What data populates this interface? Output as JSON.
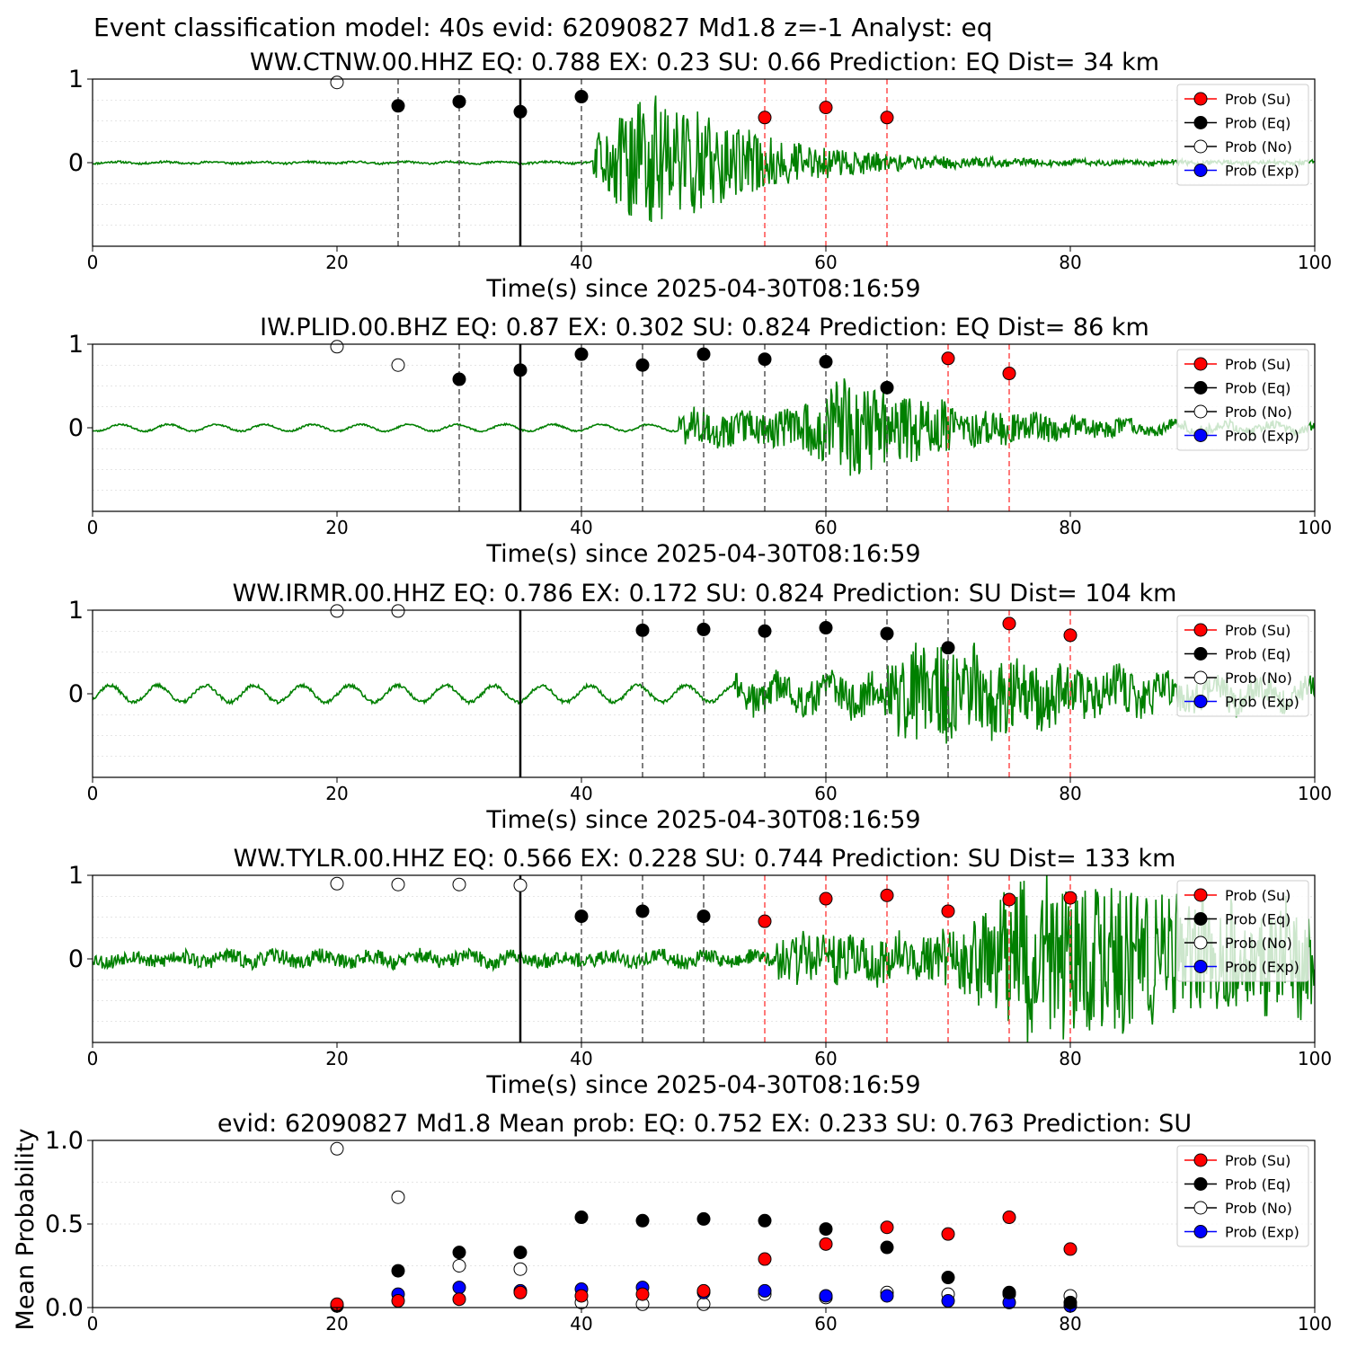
{
  "suptitle": "Event classification model: 40s evid: 62090827 Md1.8 z=-1 Analyst: eq",
  "colors": {
    "su": "#ff0000",
    "eq": "#000000",
    "no": "#ffffff",
    "exp": "#0000ff",
    "trace": "#008000",
    "su_line": "#ff4d4d",
    "eq_line": "#555555"
  },
  "legend_labels": [
    "Prob (Su)",
    "Prob (Eq)",
    "Prob (No)",
    "Prob (Exp)"
  ],
  "chart_data": [
    {
      "type": "scatter",
      "title": "WW.CTNW.00.HHZ   EQ: 0.788  EX: 0.23  SU: 0.66   Prediction: EQ    Dist= 34 km",
      "xlabel": "Time(s) since 2025-04-30T08:16:59",
      "ylabel": "",
      "xlim": [
        0,
        100
      ],
      "ylim": [
        -1,
        1
      ],
      "xticks": [
        "0",
        "20",
        "40",
        "60",
        "80",
        "100"
      ],
      "yticks": [
        "0",
        "1"
      ],
      "legend": "top-right",
      "grid": "horizontal",
      "trace": {
        "onset": 41,
        "noise": 0.012,
        "peak": 0.95,
        "peak_at": 46,
        "decay": 8,
        "coda": 0.02,
        "wavy": 0.01,
        "seed": 11
      },
      "solid_line_x": 35,
      "eq_lines_x": [
        25,
        30,
        40
      ],
      "su_lines_x": [
        55,
        60,
        65
      ],
      "series": [
        {
          "name": "Prob (Su)",
          "x": [
            55,
            60,
            65
          ],
          "y": [
            0.54,
            0.66,
            0.54
          ]
        },
        {
          "name": "Prob (Eq)",
          "x": [
            25,
            30,
            35,
            40
          ],
          "y": [
            0.68,
            0.73,
            0.61,
            0.79
          ]
        },
        {
          "name": "Prob (No)",
          "x": [
            20
          ],
          "y": [
            0.96
          ]
        },
        {
          "name": "Prob (Exp)",
          "x": [],
          "y": []
        }
      ]
    },
    {
      "type": "scatter",
      "title": "IW.PLID.00.BHZ   EQ: 0.87  EX: 0.302  SU: 0.824   Prediction: EQ    Dist= 86 km",
      "xlabel": "Time(s) since 2025-04-30T08:16:59",
      "ylabel": "",
      "xlim": [
        0,
        100
      ],
      "ylim": [
        -1,
        1
      ],
      "xticks": [
        "0",
        "20",
        "40",
        "60",
        "80",
        "100"
      ],
      "yticks": [
        "0",
        "1"
      ],
      "legend": "top-right",
      "grid": "horizontal",
      "trace": {
        "onset": 48,
        "noise": 0.01,
        "peak": 0.6,
        "peak_at": 62,
        "decay": 10,
        "coda": 0.03,
        "wavy": 0.04,
        "seed": 23
      },
      "solid_line_x": 35,
      "eq_lines_x": [
        30,
        40,
        45,
        50,
        55,
        60,
        65
      ],
      "su_lines_x": [
        70,
        75
      ],
      "series": [
        {
          "name": "Prob (Su)",
          "x": [
            70,
            75
          ],
          "y": [
            0.83,
            0.65
          ]
        },
        {
          "name": "Prob (Eq)",
          "x": [
            30,
            35,
            40,
            45,
            50,
            55,
            60,
            65
          ],
          "y": [
            0.58,
            0.69,
            0.88,
            0.75,
            0.88,
            0.82,
            0.79,
            0.48
          ]
        },
        {
          "name": "Prob (No)",
          "x": [
            20,
            25
          ],
          "y": [
            0.97,
            0.75
          ]
        },
        {
          "name": "Prob (Exp)",
          "x": [],
          "y": []
        }
      ]
    },
    {
      "type": "scatter",
      "title": "WW.IRMR.00.HHZ   EQ: 0.786  EX: 0.172  SU: 0.824   Prediction: SU    Dist= 104 km",
      "xlabel": "Time(s) since 2025-04-30T08:16:59",
      "ylabel": "",
      "xlim": [
        0,
        100
      ],
      "ylim": [
        -1,
        1
      ],
      "xticks": [
        "0",
        "20",
        "40",
        "60",
        "80",
        "100"
      ],
      "yticks": [
        "0",
        "1"
      ],
      "legend": "top-right",
      "grid": "horizontal",
      "trace": {
        "onset": 52.5,
        "noise": 0.02,
        "peak": 0.6,
        "peak_at": 68,
        "decay": 14,
        "coda": 0.08,
        "wavy": 0.1,
        "seed": 37
      },
      "solid_line_x": 35,
      "eq_lines_x": [
        45,
        50,
        55,
        60,
        65,
        70
      ],
      "su_lines_x": [
        75,
        80
      ],
      "series": [
        {
          "name": "Prob (Su)",
          "x": [
            75,
            80
          ],
          "y": [
            0.84,
            0.7
          ]
        },
        {
          "name": "Prob (Eq)",
          "x": [
            45,
            50,
            55,
            60,
            65,
            70
          ],
          "y": [
            0.76,
            0.77,
            0.75,
            0.79,
            0.72,
            0.55
          ]
        },
        {
          "name": "Prob (No)",
          "x": [
            20,
            25
          ],
          "y": [
            0.99,
            0.99
          ]
        },
        {
          "name": "Prob (Exp)",
          "x": [],
          "y": []
        }
      ]
    },
    {
      "type": "scatter",
      "title": "WW.TYLR.00.HHZ   EQ: 0.566  EX: 0.228  SU: 0.744   Prediction: SU    Dist= 133 km",
      "xlabel": "Time(s) since 2025-04-30T08:16:59",
      "ylabel": "",
      "xlim": [
        0,
        100
      ],
      "ylim": [
        -1,
        1
      ],
      "xticks": [
        "0",
        "20",
        "40",
        "60",
        "80",
        "100"
      ],
      "yticks": [
        "0",
        "1"
      ],
      "legend": "top-right",
      "grid": "horizontal",
      "trace": {
        "onset": 56,
        "noise": 0.09,
        "peak": 0.75,
        "peak_at": 75,
        "decay": 30,
        "coda": 0.3,
        "wavy": 0.04,
        "seed": 53
      },
      "solid_line_x": 35,
      "eq_lines_x": [
        40,
        45,
        50
      ],
      "su_lines_x": [
        55,
        60,
        65,
        70,
        75,
        80
      ],
      "series": [
        {
          "name": "Prob (Su)",
          "x": [
            55,
            60,
            65,
            70,
            75,
            80
          ],
          "y": [
            0.45,
            0.72,
            0.76,
            0.57,
            0.71,
            0.73
          ]
        },
        {
          "name": "Prob (Eq)",
          "x": [
            40,
            45,
            50
          ],
          "y": [
            0.51,
            0.57,
            0.51
          ]
        },
        {
          "name": "Prob (No)",
          "x": [
            20,
            25,
            30,
            35
          ],
          "y": [
            0.9,
            0.89,
            0.89,
            0.88
          ]
        },
        {
          "name": "Prob (Exp)",
          "x": [],
          "y": []
        }
      ]
    },
    {
      "type": "scatter",
      "title": "evid: 62090827  Md1.8   Mean prob:   EQ: 0.752  EX: 0.233  SU: 0.763   Prediction: SU",
      "xlabel": "",
      "ylabel": "Mean Probability",
      "xlim": [
        0,
        100
      ],
      "ylim": [
        0,
        1
      ],
      "xticks": [
        "0",
        "20",
        "40",
        "60",
        "80",
        "100"
      ],
      "yticks": [
        "0.0",
        "0.5",
        "1.0"
      ],
      "legend": "top-right",
      "grid": "horizontal",
      "series": [
        {
          "name": "Prob (Su)",
          "x": [
            20,
            25,
            30,
            35,
            40,
            45,
            50,
            55,
            60,
            65,
            70,
            75,
            80
          ],
          "y": [
            0.02,
            0.04,
            0.05,
            0.09,
            0.07,
            0.08,
            0.1,
            0.29,
            0.38,
            0.48,
            0.44,
            0.54,
            0.35
          ]
        },
        {
          "name": "Prob (Eq)",
          "x": [
            20,
            25,
            30,
            35,
            40,
            45,
            50,
            55,
            60,
            65,
            70,
            75,
            80
          ],
          "y": [
            0.01,
            0.22,
            0.33,
            0.33,
            0.54,
            0.52,
            0.53,
            0.52,
            0.47,
            0.36,
            0.18,
            0.09,
            0.03
          ]
        },
        {
          "name": "Prob (No)",
          "x": [
            20,
            25,
            30,
            35,
            40,
            45,
            50,
            55,
            60,
            65,
            70,
            75,
            80
          ],
          "y": [
            0.95,
            0.66,
            0.25,
            0.23,
            0.03,
            0.02,
            0.02,
            0.08,
            0.06,
            0.09,
            0.08,
            0.08,
            0.07
          ]
        },
        {
          "name": "Prob (Exp)",
          "x": [
            20,
            25,
            30,
            35,
            40,
            45,
            50,
            55,
            60,
            65,
            70,
            75,
            80
          ],
          "y": [
            0.01,
            0.08,
            0.12,
            0.1,
            0.11,
            0.12,
            0.09,
            0.1,
            0.07,
            0.07,
            0.04,
            0.03,
            0.01
          ]
        }
      ]
    }
  ]
}
